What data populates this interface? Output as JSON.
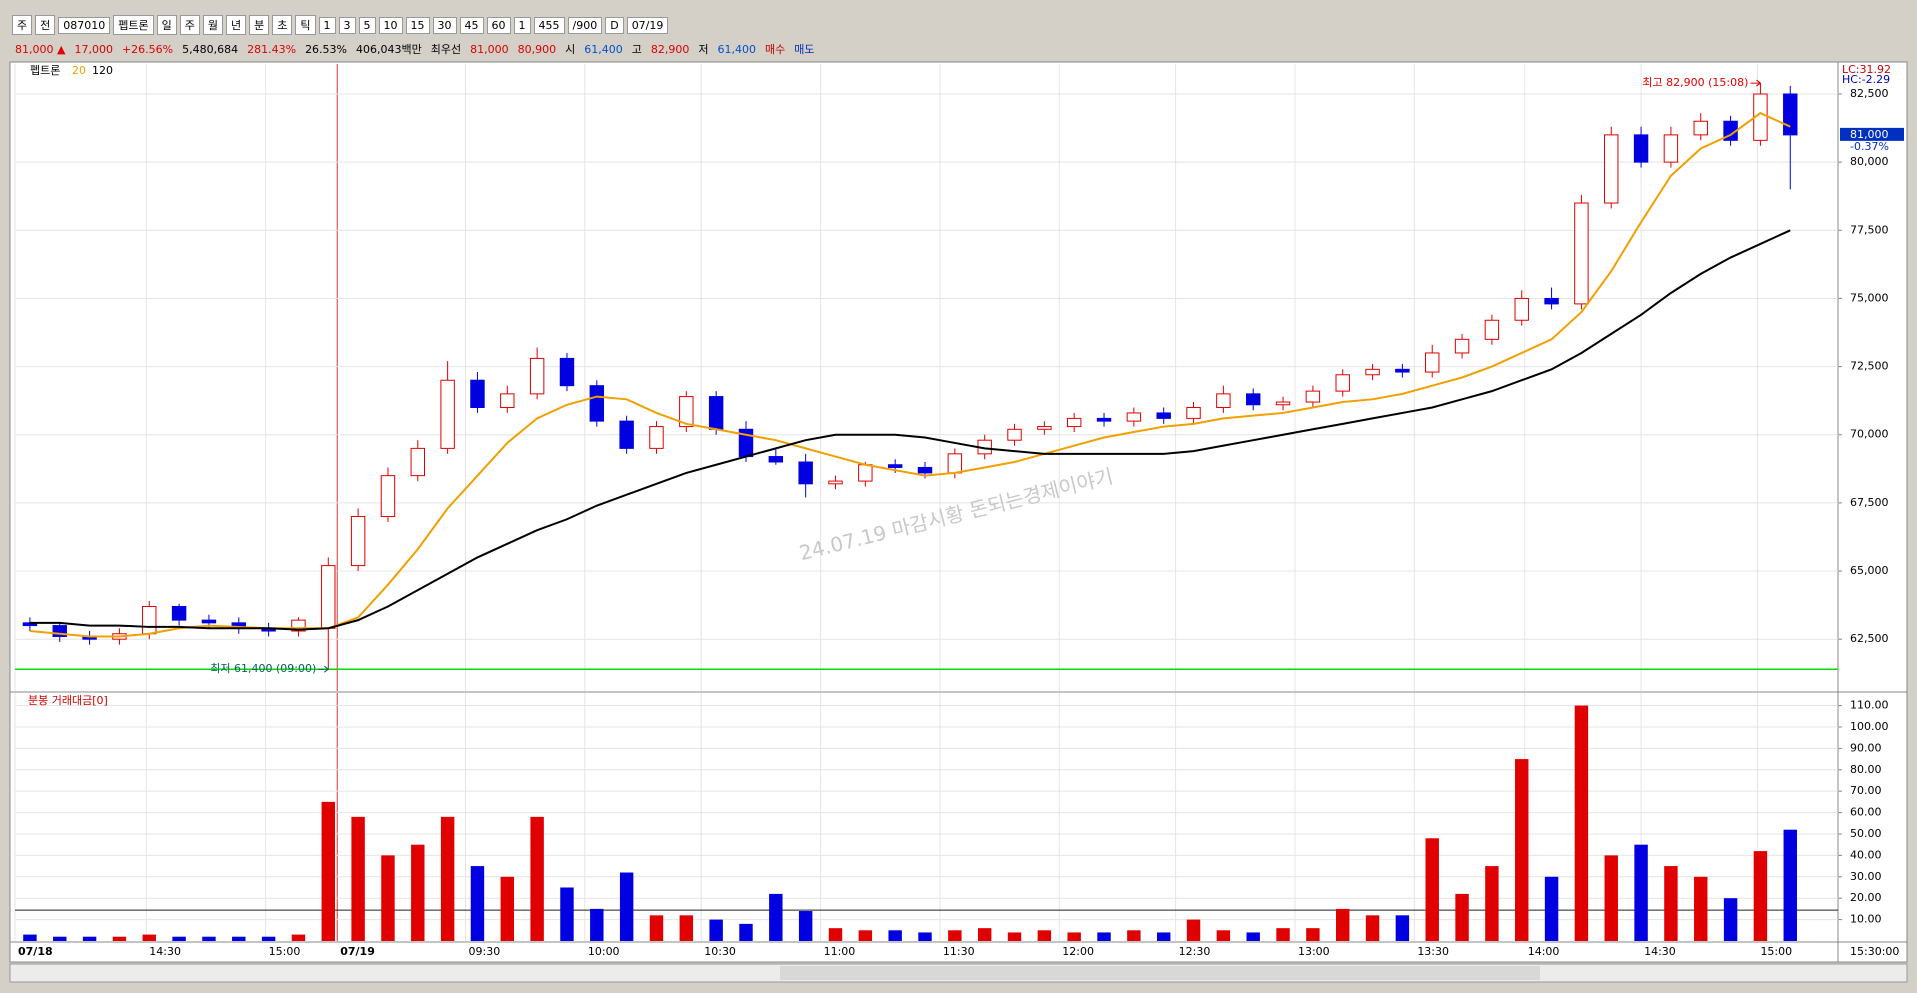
{
  "toolbar": {
    "row1": [
      "주",
      "전",
      "087010",
      "펩트론",
      "일",
      "주",
      "월",
      "년",
      "분",
      "초",
      "틱",
      "1",
      "3",
      "5",
      "10",
      "15",
      "30",
      "45",
      "60",
      "1",
      "455",
      "/900",
      "D",
      "07/19"
    ],
    "row2": [
      {
        "text": "81,000 ▲",
        "color": "#e00000"
      },
      {
        "text": "17,000",
        "color": "#e00000"
      },
      {
        "text": "+26.56%",
        "color": "#e00000"
      },
      {
        "text": "5,480,684",
        "color": "#000000"
      },
      {
        "text": "281.43%",
        "color": "#e00000"
      },
      {
        "text": "26.53%",
        "color": "#000000"
      },
      {
        "text": "406,043백만",
        "color": "#000000"
      },
      {
        "text": "최우선",
        "color": "#000000"
      },
      {
        "text": "81,000",
        "color": "#e00000"
      },
      {
        "text": "80,900",
        "color": "#e00000"
      },
      {
        "text": "시",
        "color": "#000000"
      },
      {
        "text": "61,400",
        "color": "#0050d0"
      },
      {
        "text": "고",
        "color": "#000000"
      },
      {
        "text": "82,900",
        "color": "#e00000"
      },
      {
        "text": "저",
        "color": "#000000"
      },
      {
        "text": "61,400",
        "color": "#0050d0"
      },
      {
        "text": "매수",
        "color": "#c00000"
      },
      {
        "text": "매도",
        "color": "#0030b0"
      }
    ]
  },
  "chart_data": [
    {
      "type": "candlestick",
      "title": "펩트론",
      "up_color": "#e00000",
      "down_color": "#0000e0",
      "grid": true,
      "open": [
        63100,
        63000,
        62600,
        62500,
        62700,
        63700,
        63200,
        63100,
        62900,
        62800,
        62900,
        65200,
        67000,
        68500,
        69500,
        72000,
        71000,
        71500,
        72800,
        71800,
        70500,
        69500,
        70300,
        71400,
        70200,
        69200,
        69000,
        68200,
        68300,
        68900,
        68800,
        68600,
        69300,
        69800,
        70200,
        70300,
        70600,
        70500,
        70800,
        70600,
        71000,
        71500,
        71100,
        71200,
        71600,
        72200,
        72400,
        72300,
        73000,
        73500,
        74200,
        75000,
        74800,
        78500,
        81000,
        80000,
        81000,
        81500,
        80800,
        82500
      ],
      "high": [
        63300,
        63100,
        62800,
        62900,
        63900,
        63800,
        63400,
        63300,
        63100,
        63300,
        65500,
        67300,
        68800,
        69800,
        72700,
        72300,
        71800,
        73200,
        73000,
        72000,
        70700,
        70500,
        71600,
        71600,
        70500,
        69500,
        69300,
        68500,
        69000,
        69100,
        69000,
        69500,
        70000,
        70400,
        70500,
        70800,
        70800,
        71000,
        71000,
        71200,
        71800,
        71700,
        71400,
        71800,
        72400,
        72600,
        72600,
        73300,
        73700,
        74400,
        75300,
        75400,
        78800,
        81300,
        81300,
        81300,
        81800,
        81700,
        82900,
        82800
      ],
      "low": [
        62800,
        62400,
        62300,
        62300,
        62500,
        63000,
        62900,
        62700,
        62600,
        62600,
        61400,
        65000,
        66800,
        68300,
        69300,
        70800,
        70800,
        71300,
        71600,
        70300,
        69300,
        69300,
        70100,
        70000,
        69000,
        68900,
        67700,
        68000,
        68100,
        68600,
        68400,
        68400,
        69100,
        69600,
        70000,
        70100,
        70300,
        70300,
        70400,
        70400,
        70800,
        70900,
        70900,
        71000,
        71400,
        72000,
        72100,
        72100,
        72800,
        73300,
        74000,
        74600,
        74600,
        78300,
        79800,
        79800,
        80800,
        80600,
        80600,
        79000
      ],
      "close": [
        63000,
        62600,
        62500,
        62700,
        63700,
        63200,
        63100,
        62900,
        62800,
        63200,
        65200,
        67000,
        68500,
        69500,
        72000,
        71000,
        71500,
        72800,
        71800,
        70500,
        69500,
        70300,
        71400,
        70200,
        69200,
        69000,
        68200,
        68300,
        68900,
        68800,
        68600,
        69300,
        69800,
        70200,
        70300,
        70600,
        70500,
        70800,
        70600,
        71000,
        71500,
        71100,
        71200,
        71600,
        72200,
        72400,
        72300,
        73000,
        73500,
        74200,
        75000,
        74800,
        78500,
        81000,
        80000,
        81000,
        81500,
        80800,
        82500,
        81000
      ],
      "series": [
        {
          "name": "20",
          "color": "#f0a000",
          "values": [
            62800,
            62700,
            62600,
            62600,
            62700,
            62900,
            63000,
            62950,
            62900,
            62900,
            62900,
            63300,
            64500,
            65800,
            67300,
            68500,
            69700,
            70600,
            71100,
            71400,
            71300,
            70800,
            70400,
            70200,
            70000,
            69800,
            69500,
            69200,
            68900,
            68700,
            68500,
            68600,
            68800,
            69000,
            69300,
            69600,
            69900,
            70100,
            70300,
            70400,
            70600,
            70700,
            70800,
            71000,
            71200,
            71300,
            71500,
            71800,
            72100,
            72500,
            73000,
            73500,
            74500,
            76000,
            77800,
            79500,
            80500,
            81000,
            81800,
            81300
          ]
        },
        {
          "name": "120",
          "color": "#000000",
          "values": [
            63100,
            63100,
            63000,
            63000,
            62950,
            62950,
            62900,
            62900,
            62900,
            62850,
            62900,
            63200,
            63700,
            64300,
            64900,
            65500,
            66000,
            66500,
            66900,
            67400,
            67800,
            68200,
            68600,
            68900,
            69200,
            69500,
            69800,
            70000,
            70000,
            70000,
            69900,
            69700,
            69500,
            69400,
            69300,
            69300,
            69300,
            69300,
            69300,
            69400,
            69600,
            69800,
            70000,
            70200,
            70400,
            70600,
            70800,
            71000,
            71300,
            71600,
            72000,
            72400,
            73000,
            73700,
            74400,
            75200,
            75900,
            76500,
            77000,
            77500
          ]
        }
      ],
      "ylim": [
        60600,
        83600
      ],
      "yticks": [
        {
          "value": 62500,
          "label": "62,500"
        },
        {
          "value": 65000,
          "label": "65,000"
        },
        {
          "value": 67500,
          "label": "67,500"
        },
        {
          "value": 70000,
          "label": "70,000"
        },
        {
          "value": 72500,
          "label": "72,500"
        },
        {
          "value": 75000,
          "label": "75,000"
        },
        {
          "value": 77500,
          "label": "77,500"
        },
        {
          "value": 80000,
          "label": "80,000"
        },
        {
          "value": 82500,
          "label": "82,500"
        }
      ],
      "xlim": [
        -0.5,
        60.6
      ],
      "xticks": [
        {
          "value": -0.5,
          "label": "07/18"
        },
        {
          "value": 3.9,
          "label": "14:30"
        },
        {
          "value": 7.9,
          "label": "15:00"
        },
        {
          "value": 10.3,
          "label": "07/19"
        },
        {
          "value": 14.6,
          "label": "09:30"
        },
        {
          "value": 18.6,
          "label": "10:00"
        },
        {
          "value": 22.5,
          "label": "10:30"
        },
        {
          "value": 26.5,
          "label": "11:00"
        },
        {
          "value": 30.5,
          "label": "11:30"
        },
        {
          "value": 34.5,
          "label": "12:00"
        },
        {
          "value": 38.4,
          "label": "12:30"
        },
        {
          "value": 42.4,
          "label": "13:00"
        },
        {
          "value": 46.4,
          "label": "13:30"
        },
        {
          "value": 50.1,
          "label": "14:00"
        },
        {
          "value": 54,
          "label": "14:30"
        },
        {
          "value": 57.9,
          "label": "15:00"
        }
      ],
      "divider_tick": 3,
      "annotations": [
        {
          "text": "최고 82,900 (15:08)",
          "x": 58,
          "y": 82900,
          "color": "#e00000"
        },
        {
          "text": "최저 61,400 (09:00)",
          "x": 10,
          "y": 61400,
          "color": "#006060"
        }
      ],
      "low_line": 61400,
      "last_price": {
        "value": 81000,
        "label": "81,000",
        "change": "-0.37%"
      },
      "scale_info": [
        "LC:31.92",
        "HC:-2.29"
      ],
      "watermark": "24.07.19 마감시황   돈되는경제이야기"
    },
    {
      "type": "bar",
      "title": "분봉 거래대금[0]",
      "grid": true,
      "values": [
        3,
        2,
        2,
        2,
        3,
        2,
        2,
        2,
        2,
        3,
        65,
        58,
        40,
        45,
        58,
        35,
        30,
        58,
        25,
        15,
        32,
        12,
        12,
        10,
        8,
        22,
        14,
        6,
        5,
        5,
        4,
        5,
        6,
        4,
        5,
        4,
        4,
        5,
        4,
        10,
        5,
        4,
        6,
        6,
        15,
        12,
        12,
        48,
        22,
        35,
        85,
        30,
        110,
        40,
        45,
        35,
        30,
        20,
        42,
        52
      ],
      "ylim": [
        0,
        114
      ],
      "yticks": [
        {
          "value": 10,
          "label": "10.00"
        },
        {
          "value": 20,
          "label": "20.00"
        },
        {
          "value": 30,
          "label": "30.00"
        },
        {
          "value": 40,
          "label": "40.00"
        },
        {
          "value": 50,
          "label": "50.00"
        },
        {
          "value": 60,
          "label": "60.00"
        },
        {
          "value": 70,
          "label": "70.00"
        },
        {
          "value": 80,
          "label": "80.00"
        },
        {
          "value": 90,
          "label": "90.00"
        },
        {
          "value": 100,
          "label": "100.00"
        },
        {
          "value": 110,
          "label": "110.00"
        }
      ],
      "reference_line": 14.4,
      "end_label": "15:30:00"
    }
  ]
}
